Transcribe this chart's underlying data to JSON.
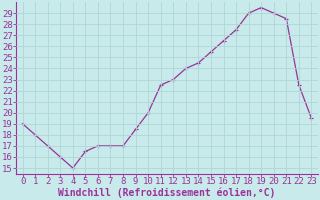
{
  "x": [
    0,
    1,
    2,
    3,
    4,
    5,
    6,
    7,
    8,
    9,
    10,
    11,
    12,
    13,
    14,
    15,
    16,
    17,
    18,
    19,
    20,
    21,
    22,
    23
  ],
  "y": [
    19,
    18,
    17,
    16,
    15,
    16.5,
    17,
    17,
    17,
    18.5,
    20,
    22.5,
    23,
    24,
    24.5,
    25.5,
    26.5,
    27.5,
    29,
    29.5,
    29,
    28.5,
    22.5,
    19.5
  ],
  "line_color": "#993399",
  "marker_color": "#993399",
  "bg_color": "#c8eaea",
  "grid_color": "#aed6d6",
  "xlabel": "Windchill (Refroidissement éolien,°C)",
  "xlabel_color": "#993399",
  "tick_color": "#993399",
  "axis_color": "#993399",
  "ylim_min": 14.5,
  "ylim_max": 30.0,
  "xlim_min": -0.5,
  "xlim_max": 23.5,
  "yticks": [
    15,
    16,
    17,
    18,
    19,
    20,
    21,
    22,
    23,
    24,
    25,
    26,
    27,
    28,
    29
  ],
  "xticks": [
    0,
    1,
    2,
    3,
    4,
    5,
    6,
    7,
    8,
    9,
    10,
    11,
    12,
    13,
    14,
    15,
    16,
    17,
    18,
    19,
    20,
    21,
    22,
    23
  ],
  "font_size": 6.5,
  "xlabel_fontsize": 7.0,
  "marker_size": 2.5,
  "line_width": 0.9
}
